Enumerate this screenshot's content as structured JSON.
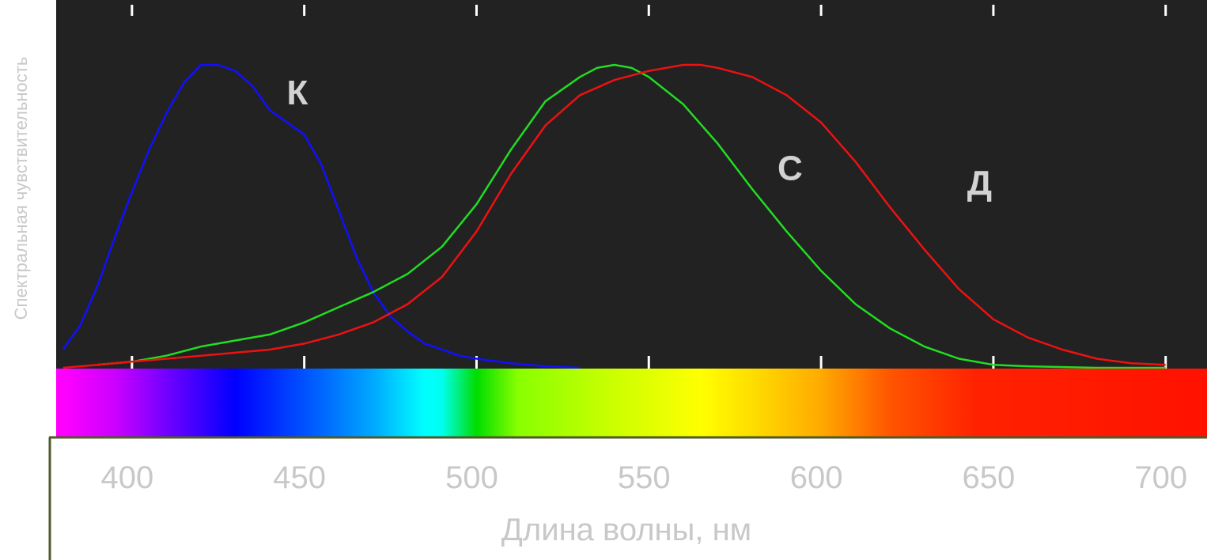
{
  "chart_data": {
    "type": "line",
    "xlabel": "Длина волны, нм",
    "ylabel": "Спектральная чувствительность",
    "xlim": [
      378,
      712
    ],
    "ylim": [
      0,
      1
    ],
    "x_ticks": [
      "400",
      "450",
      "500",
      "550",
      "600",
      "650",
      "700"
    ],
    "background": "#222222",
    "series": [
      {
        "name": "К",
        "color": "#1010ff",
        "x": [
          380,
          385,
          390,
          395,
          400,
          405,
          410,
          415,
          420,
          425,
          430,
          435,
          440,
          445,
          450,
          455,
          460,
          465,
          470,
          475,
          480,
          485,
          490,
          495,
          500,
          510,
          520,
          530
        ],
        "y": [
          0.06,
          0.14,
          0.27,
          0.43,
          0.58,
          0.72,
          0.84,
          0.94,
          1.0,
          1.0,
          0.98,
          0.93,
          0.85,
          0.81,
          0.77,
          0.67,
          0.52,
          0.37,
          0.25,
          0.17,
          0.12,
          0.08,
          0.06,
          0.04,
          0.03,
          0.015,
          0.005,
          0.0
        ]
      },
      {
        "name": "С",
        "color": "#22dd22",
        "x": [
          390,
          400,
          410,
          420,
          430,
          440,
          450,
          460,
          470,
          480,
          490,
          500,
          510,
          520,
          530,
          535,
          540,
          545,
          550,
          560,
          570,
          580,
          590,
          600,
          610,
          620,
          630,
          640,
          650,
          660,
          680,
          700
        ],
        "y": [
          0.01,
          0.02,
          0.04,
          0.07,
          0.09,
          0.11,
          0.15,
          0.2,
          0.25,
          0.31,
          0.4,
          0.54,
          0.72,
          0.88,
          0.96,
          0.99,
          1.0,
          0.99,
          0.96,
          0.87,
          0.74,
          0.59,
          0.45,
          0.32,
          0.21,
          0.13,
          0.07,
          0.03,
          0.01,
          0.005,
          0.0,
          0.0
        ]
      },
      {
        "name": "Д",
        "color": "#ee1111",
        "x": [
          380,
          390,
          400,
          410,
          420,
          430,
          440,
          450,
          460,
          470,
          480,
          490,
          500,
          510,
          520,
          530,
          540,
          550,
          560,
          565,
          570,
          580,
          590,
          600,
          610,
          620,
          630,
          640,
          650,
          660,
          670,
          680,
          690,
          700
        ],
        "y": [
          0.0,
          0.01,
          0.02,
          0.03,
          0.04,
          0.05,
          0.06,
          0.08,
          0.11,
          0.15,
          0.21,
          0.3,
          0.45,
          0.64,
          0.8,
          0.9,
          0.95,
          0.98,
          1.0,
          1.0,
          0.99,
          0.96,
          0.9,
          0.81,
          0.68,
          0.53,
          0.39,
          0.26,
          0.16,
          0.1,
          0.06,
          0.03,
          0.015,
          0.01
        ]
      }
    ],
    "series_labels": [
      {
        "text": "К",
        "x": 448,
        "y": 0.87
      },
      {
        "text": "С",
        "x": 591,
        "y": 0.62
      },
      {
        "text": "Д",
        "x": 646,
        "y": 0.57
      }
    ],
    "spectrum_bar": {
      "stops": [
        {
          "wl": 380,
          "color": "#ff00ff"
        },
        {
          "wl": 395,
          "color": "#cc00ff"
        },
        {
          "wl": 412,
          "color": "#6600ff"
        },
        {
          "wl": 430,
          "color": "#0000ff"
        },
        {
          "wl": 455,
          "color": "#0066ff"
        },
        {
          "wl": 470,
          "color": "#00a8ff"
        },
        {
          "wl": 485,
          "color": "#00ffff"
        },
        {
          "wl": 490,
          "color": "#00ffee"
        },
        {
          "wl": 500,
          "color": "#00dd00"
        },
        {
          "wl": 512,
          "color": "#88ff00"
        },
        {
          "wl": 540,
          "color": "#ccff00"
        },
        {
          "wl": 565,
          "color": "#ffff00"
        },
        {
          "wl": 580,
          "color": "#ffdd00"
        },
        {
          "wl": 600,
          "color": "#ffaa00"
        },
        {
          "wl": 620,
          "color": "#ff5500"
        },
        {
          "wl": 645,
          "color": "#ff2200"
        },
        {
          "wl": 712,
          "color": "#ff1100"
        }
      ]
    }
  }
}
